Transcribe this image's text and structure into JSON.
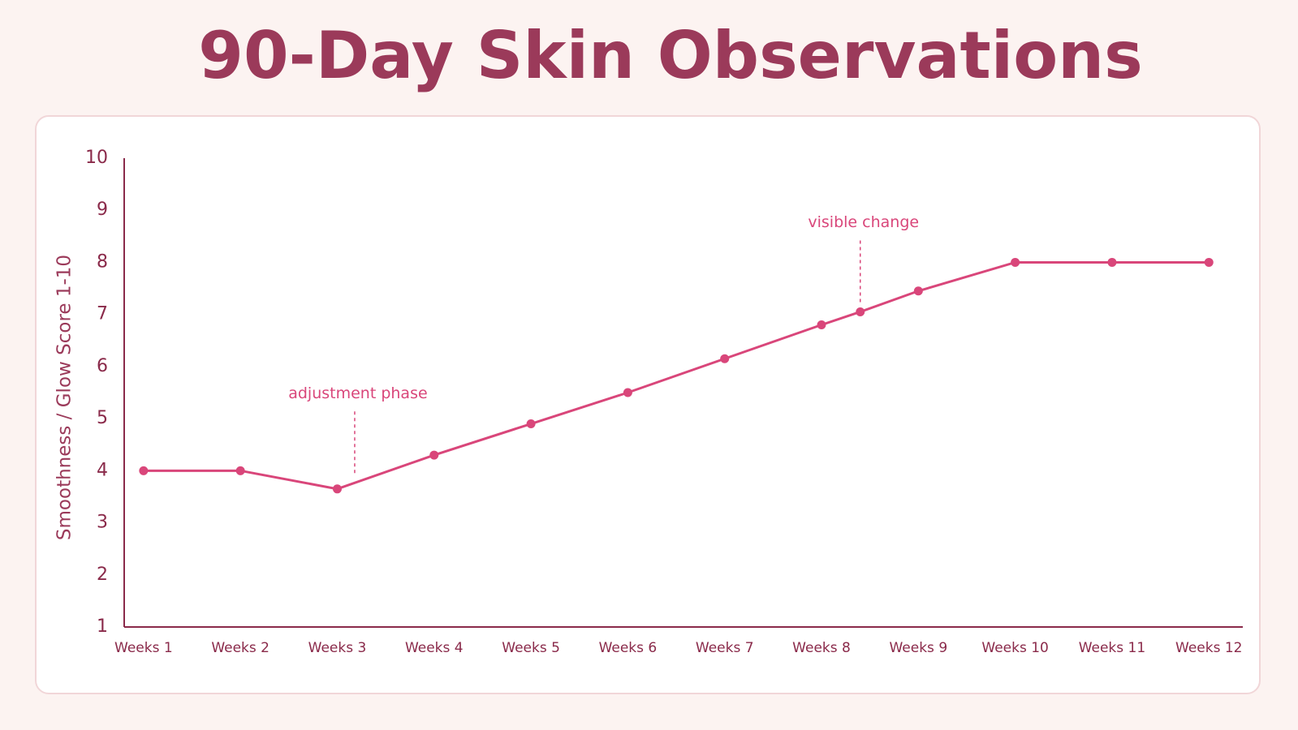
{
  "chart_data": {
    "type": "line",
    "title": "90-Day Skin Observations",
    "y_label": "Smoothness / Glow Score 1-10",
    "x": [
      1,
      2,
      3,
      4,
      5,
      6,
      7,
      8,
      8.4,
      9,
      10,
      11,
      12
    ],
    "values": [
      4,
      4,
      3.65,
      4.3,
      4.9,
      5.5,
      6.15,
      6.8,
      7.05,
      7.45,
      8,
      8,
      8
    ],
    "color": "#d9467a",
    "xlim": [
      0.8,
      12.35
    ],
    "xticks": [
      {
        "value": 1,
        "label": "Weeks 1"
      },
      {
        "value": 2,
        "label": "Weeks 2"
      },
      {
        "value": 3,
        "label": "Weeks 3"
      },
      {
        "value": 4,
        "label": "Weeks 4"
      },
      {
        "value": 5,
        "label": "Weeks 5"
      },
      {
        "value": 6,
        "label": "Weeks 6"
      },
      {
        "value": 7,
        "label": "Weeks 7"
      },
      {
        "value": 8,
        "label": "Weeks 8"
      },
      {
        "value": 9,
        "label": "Weeks 9"
      },
      {
        "value": 10,
        "label": "Weeks 10"
      },
      {
        "value": 11,
        "label": "Weeks 11"
      },
      {
        "value": 12,
        "label": "Weeks 12"
      }
    ],
    "ylim": [
      1,
      10
    ],
    "yticks": [
      1,
      2,
      3,
      4,
      5,
      6,
      7,
      8,
      9,
      10
    ],
    "grid": false,
    "annotations": [
      {
        "text": "adjustment phase",
        "x": 3.18
      },
      {
        "text": "visible change",
        "x": 8.4
      }
    ]
  }
}
